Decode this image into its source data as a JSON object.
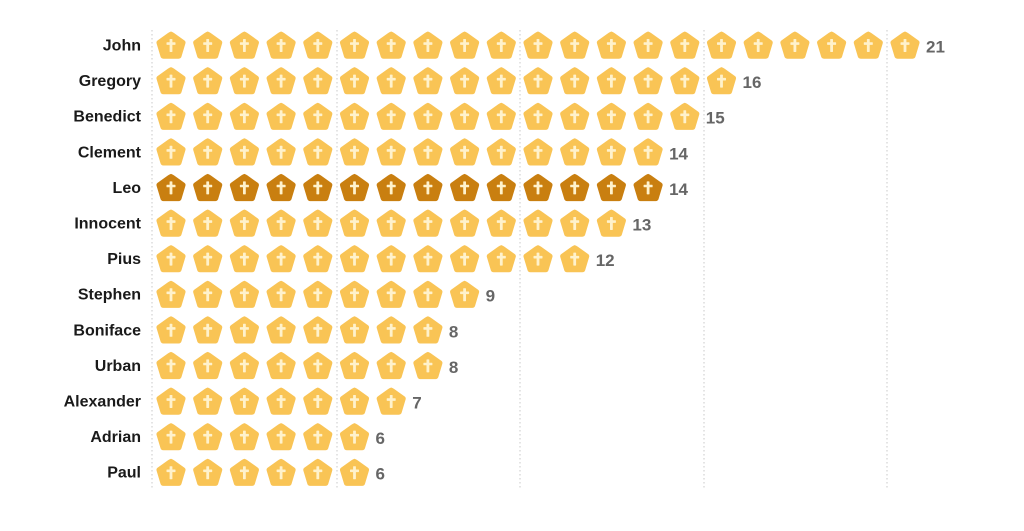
{
  "chart_data": {
    "type": "pictograph",
    "grid": true,
    "categories": [
      "John",
      "Gregory",
      "Benedict",
      "Clement",
      "Leo",
      "Innocent",
      "Pius",
      "Stephen",
      "Boniface",
      "Urban",
      "Alexander",
      "Adrian",
      "Paul"
    ],
    "values": [
      21,
      16,
      15,
      14,
      14,
      13,
      12,
      9,
      8,
      8,
      7,
      6,
      6
    ],
    "highlight": "Leo",
    "colors": {
      "icon": "#f9c455",
      "icon_highlight": "#c97f10",
      "cross": "#fff2cc",
      "gridline": "#c8c8c8",
      "label": "#1a1a1a",
      "value": "#666666"
    },
    "icon_name": "papal-mitre-icon"
  }
}
